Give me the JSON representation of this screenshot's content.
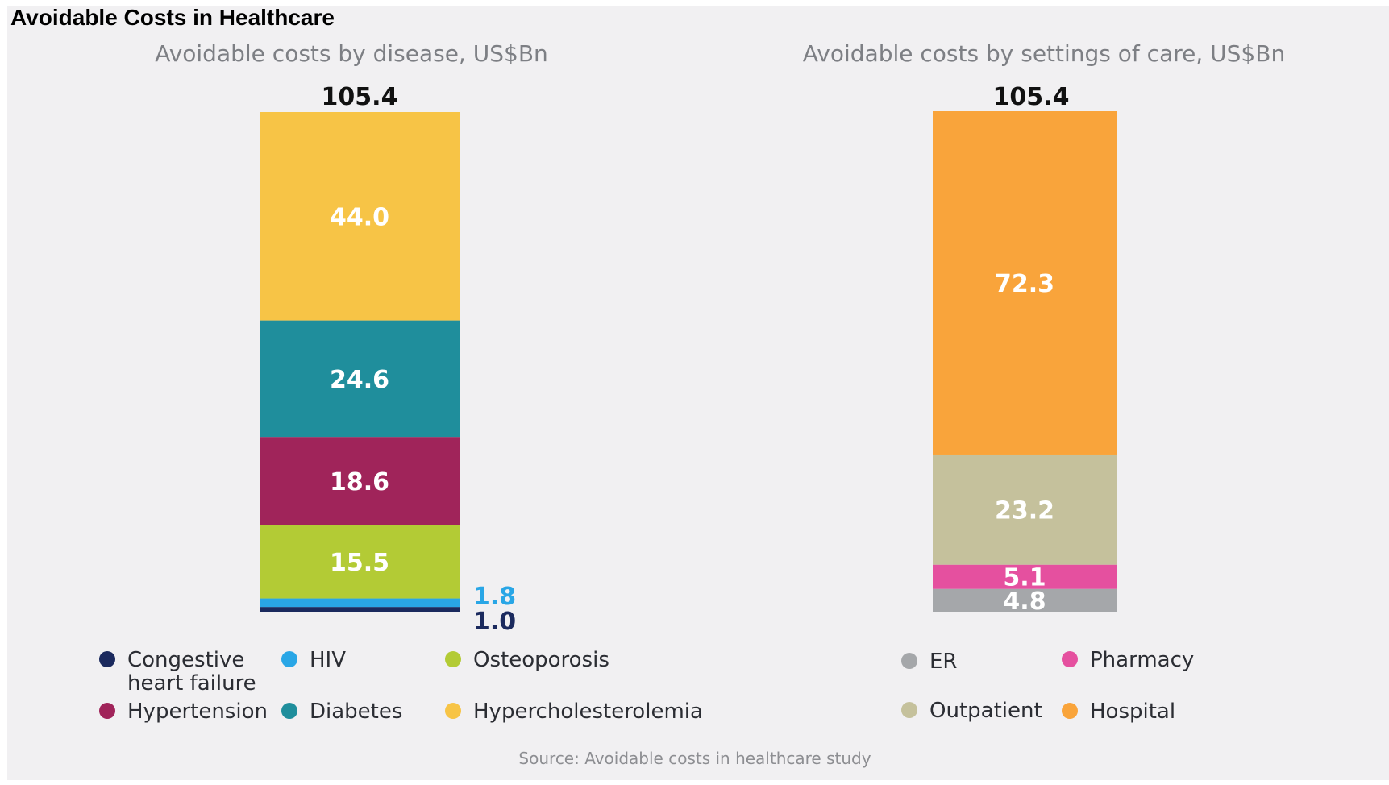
{
  "page_title": "Avoidable Costs in Healthcare",
  "source": "Source: Avoidable costs in healthcare study",
  "chart_data": [
    {
      "type": "bar",
      "stacked": true,
      "title": "Avoidable costs by disease, US$Bn",
      "total": "105.4",
      "categories": [
        "Congestive heart failure",
        "HIV",
        "Osteoporosis",
        "Hypertension",
        "Diabetes",
        "Hypercholesterolemia"
      ],
      "series": [
        {
          "name": "Congestive heart failure",
          "value": 1.0,
          "label": "1.0",
          "color": "#1b2a5e",
          "label_outside": true,
          "label_color": "#1b2a5e"
        },
        {
          "name": "HIV",
          "value": 1.8,
          "label": "1.8",
          "color": "#29a6e6",
          "label_outside": true,
          "label_color": "#29a6e6"
        },
        {
          "name": "Osteoporosis",
          "value": 15.5,
          "label": "15.5",
          "color": "#b3cb35"
        },
        {
          "name": "Hypertension",
          "value": 18.6,
          "label": "18.6",
          "color": "#a0245a"
        },
        {
          "name": "Diabetes",
          "value": 24.6,
          "label": "24.6",
          "color": "#1f8e9c"
        },
        {
          "name": "Hypercholesterolemia",
          "value": 44.0,
          "label": "44.0",
          "color": "#f7c446"
        }
      ],
      "legend": [
        {
          "label": "Congestive heart failure",
          "label_lines": [
            "Congestive",
            "heart failure"
          ],
          "color": "#1b2a5e"
        },
        {
          "label": "HIV",
          "color": "#29a6e6"
        },
        {
          "label": "Osteoporosis",
          "color": "#b3cb35"
        },
        {
          "label": "Hypertension",
          "color": "#a0245a"
        },
        {
          "label": "Diabetes",
          "color": "#1f8e9c"
        },
        {
          "label": "Hypercholesterolemia",
          "color": "#f7c446"
        }
      ],
      "legend_position": "bottom",
      "grid": false
    },
    {
      "type": "bar",
      "stacked": true,
      "title": "Avoidable costs by settings of care, US$Bn",
      "total": "105.4",
      "categories": [
        "ER",
        "Pharmacy",
        "Outpatient",
        "Hospital"
      ],
      "series": [
        {
          "name": "ER",
          "value": 4.8,
          "label": "4.8",
          "color": "#a5a7aa"
        },
        {
          "name": "Pharmacy",
          "value": 5.1,
          "label": "5.1",
          "color": "#e5509f"
        },
        {
          "name": "Outpatient",
          "value": 23.2,
          "label": "23.2",
          "color": "#c5c19c"
        },
        {
          "name": "Hospital",
          "value": 72.3,
          "label": "72.3",
          "color": "#f9a43b"
        }
      ],
      "legend": [
        {
          "label": "ER",
          "color": "#a5a7aa"
        },
        {
          "label": "Pharmacy",
          "color": "#e5509f"
        },
        {
          "label": "Outpatient",
          "color": "#c5c19c"
        },
        {
          "label": "Hospital",
          "color": "#f9a43b"
        }
      ],
      "legend_position": "bottom",
      "grid": false
    }
  ]
}
